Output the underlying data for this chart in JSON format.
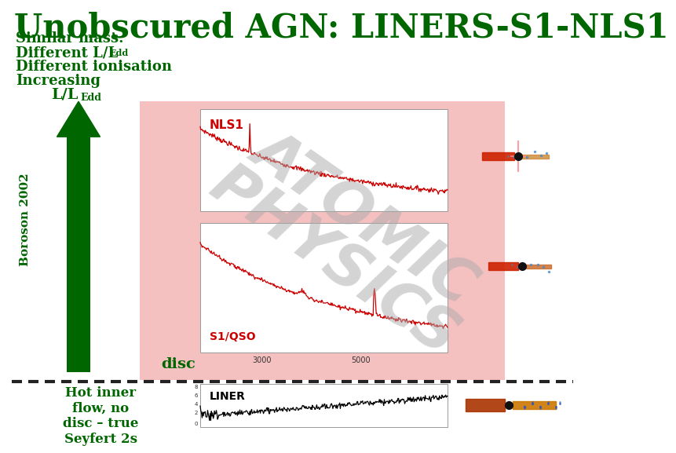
{
  "title": "Unobscured AGN: LINERS-S1-NLS1",
  "title_color": "#006600",
  "background_color": "#ffffff",
  "slide_bg": "#ffffff",
  "pink_box_color": "#f5c0c0",
  "nls1_label": "NLS1",
  "s1_label": "S1/QSO",
  "liner_label": "LINER",
  "disc_label": "disc",
  "atomic_color": "#aaaaaa",
  "dashed_line_color": "#222222",
  "hot_inner_text": "Hot inner\nflow, no\ndisc – true\nSeyfert 2s",
  "arrow_color": "#006600",
  "text_color": "#006600"
}
